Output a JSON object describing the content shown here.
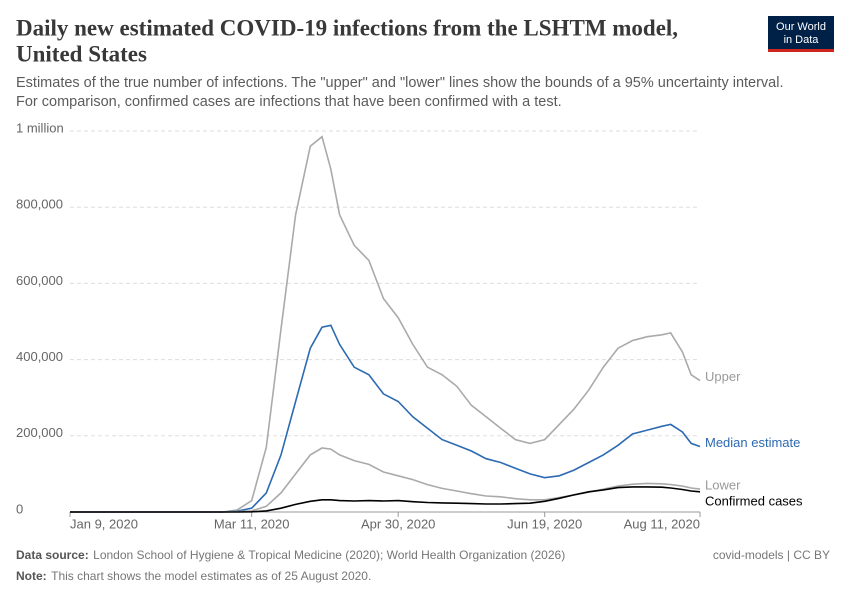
{
  "header": {
    "title_line1": "Daily new estimated COVID-19 infections from the LSHTM model,",
    "title_line2": "United States",
    "subtitle_line1": "Estimates of the true number of infections. The \"upper\" and \"lower\" lines show the bounds of a 95% uncertainty interval.",
    "subtitle_line2": "For comparison, confirmed cases are infections that have been confirmed with a test.",
    "logo_line1": "Our World",
    "logo_line2": "in Data"
  },
  "chart_data": {
    "type": "line",
    "x": [
      "2020-01-09",
      "2020-02-18",
      "2020-03-01",
      "2020-03-06",
      "2020-03-11",
      "2020-03-16",
      "2020-03-21",
      "2020-03-26",
      "2020-03-31",
      "2020-04-04",
      "2020-04-07",
      "2020-04-10",
      "2020-04-15",
      "2020-04-20",
      "2020-04-25",
      "2020-04-30",
      "2020-05-05",
      "2020-05-10",
      "2020-05-15",
      "2020-05-20",
      "2020-05-25",
      "2020-05-30",
      "2020-06-04",
      "2020-06-09",
      "2020-06-14",
      "2020-06-19",
      "2020-06-24",
      "2020-06-29",
      "2020-07-04",
      "2020-07-09",
      "2020-07-14",
      "2020-07-19",
      "2020-07-24",
      "2020-07-29",
      "2020-08-01",
      "2020-08-05",
      "2020-08-08",
      "2020-08-11"
    ],
    "series": [
      {
        "name": "Upper",
        "color": "#aaaaaa",
        "values": [
          0,
          0,
          0,
          5000,
          30000,
          170000,
          480000,
          780000,
          960000,
          985000,
          900000,
          780000,
          700000,
          660000,
          560000,
          510000,
          440000,
          380000,
          360000,
          330000,
          280000,
          250000,
          220000,
          190000,
          180000,
          190000,
          230000,
          270000,
          320000,
          380000,
          430000,
          450000,
          460000,
          465000,
          470000,
          420000,
          360000,
          345000
        ]
      },
      {
        "name": "Median estimate",
        "color": "#2c6ab1",
        "values": [
          0,
          0,
          0,
          2000,
          10000,
          50000,
          150000,
          290000,
          430000,
          485000,
          490000,
          440000,
          380000,
          360000,
          310000,
          290000,
          250000,
          220000,
          190000,
          175000,
          160000,
          140000,
          130000,
          115000,
          100000,
          90000,
          95000,
          110000,
          130000,
          150000,
          175000,
          205000,
          215000,
          225000,
          230000,
          210000,
          180000,
          172000
        ]
      },
      {
        "name": "Lower",
        "color": "#aaaaaa",
        "values": [
          0,
          0,
          0,
          1000,
          3000,
          15000,
          50000,
          100000,
          150000,
          168000,
          165000,
          150000,
          135000,
          125000,
          105000,
          95000,
          85000,
          72000,
          62000,
          55000,
          48000,
          42000,
          40000,
          35000,
          32000,
          32000,
          38000,
          45000,
          52000,
          60000,
          68000,
          73000,
          75000,
          74000,
          72000,
          68000,
          63000,
          60000
        ]
      },
      {
        "name": "Confirmed cases",
        "color": "#000000",
        "values": [
          0,
          0,
          0,
          100,
          500,
          3000,
          10000,
          20000,
          28000,
          32000,
          32000,
          30000,
          29000,
          30000,
          29000,
          30000,
          27000,
          25000,
          24000,
          23000,
          22000,
          21000,
          21000,
          22000,
          23000,
          28000,
          36000,
          45000,
          53000,
          58000,
          64000,
          66000,
          66000,
          65000,
          63000,
          59000,
          55000,
          53000
        ]
      }
    ],
    "xlim": [
      "2020-01-09",
      "2020-08-11"
    ],
    "xticks": [
      {
        "value": "2020-01-09",
        "label": "Jan 9, 2020"
      },
      {
        "value": "2020-03-11",
        "label": "Mar 11, 2020"
      },
      {
        "value": "2020-04-30",
        "label": "Apr 30, 2020"
      },
      {
        "value": "2020-06-19",
        "label": "Jun 19, 2020"
      },
      {
        "value": "2020-08-11",
        "label": "Aug 11, 2020"
      }
    ],
    "ylim": [
      0,
      1000000
    ],
    "yticks": [
      0,
      {
        "value": 200000,
        "label": "200,000"
      },
      {
        "value": 400000,
        "label": "400,000"
      },
      {
        "value": 600000,
        "label": "600,000"
      },
      {
        "value": 800000,
        "label": "800,000"
      },
      {
        "value": 1000000,
        "label": "1 million"
      }
    ],
    "grid": true
  },
  "footer": {
    "source_label": "Data source:",
    "source": "London School of Hygiene & Tropical Medicine (2020); World Health Organization (2026)",
    "note_label": "Note:",
    "note": "This chart shows the model estimates as of 25 August 2020.",
    "license": "covid-models | CC BY"
  }
}
